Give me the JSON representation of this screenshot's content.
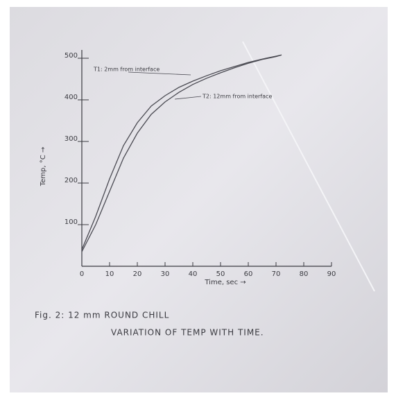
{
  "chart_data": {
    "type": "line",
    "x_label": "Time, sec →",
    "y_label": "Temp, °C →",
    "caption": [
      "Fig. 2: 12 mm ROUND CHILL",
      "VARIATION OF TEMP WITH TIME."
    ],
    "x": [
      0,
      5,
      10,
      15,
      20,
      25,
      30,
      35,
      40,
      45,
      50,
      55,
      60,
      65,
      70,
      72
    ],
    "series": [
      {
        "name": "T1: 2mm from interface",
        "color": "#4a4a52",
        "values": [
          40,
          120,
          210,
          290,
          345,
          385,
          410,
          430,
          445,
          458,
          470,
          480,
          490,
          498,
          505,
          508
        ]
      },
      {
        "name": "T2: 12mm from interface",
        "color": "#4a4a52",
        "values": [
          35,
          100,
          180,
          260,
          320,
          365,
          395,
          418,
          437,
          452,
          465,
          477,
          488,
          497,
          504,
          508
        ]
      }
    ],
    "xlim": [
      0,
      90
    ],
    "xticks": [
      0,
      10,
      20,
      30,
      40,
      50,
      60,
      70,
      80,
      90
    ],
    "ylim": [
      0,
      520
    ],
    "yticks": [
      100,
      200,
      300,
      400,
      500
    ],
    "grid": false
  }
}
